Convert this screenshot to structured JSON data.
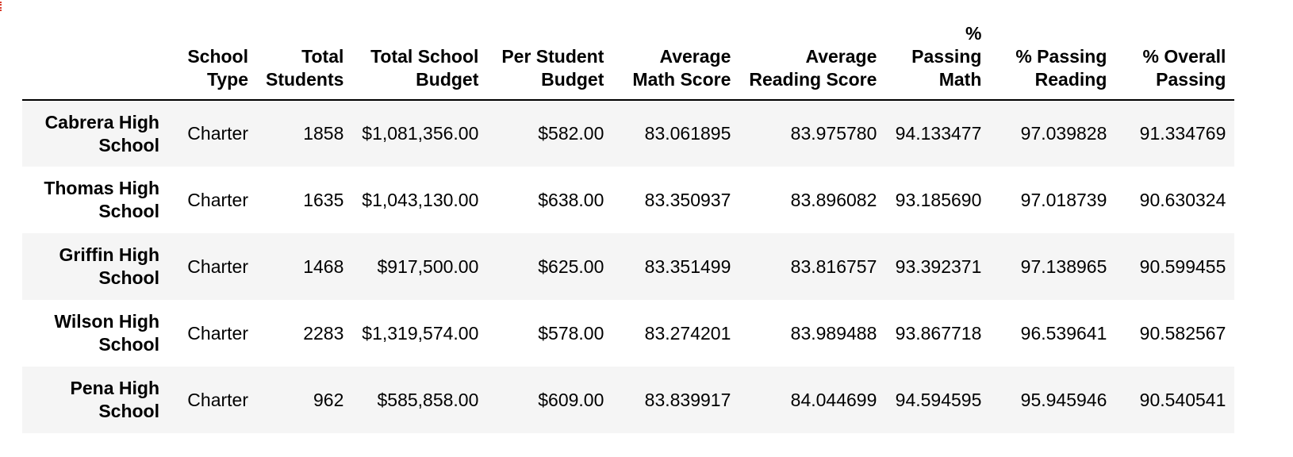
{
  "table": {
    "columns": [
      {
        "key": "school_type",
        "label": "School Type"
      },
      {
        "key": "total_students",
        "label": "Total Students"
      },
      {
        "key": "total_budget",
        "label": "Total School Budget"
      },
      {
        "key": "per_student_budget",
        "label": "Per Student Budget"
      },
      {
        "key": "avg_math",
        "label": "Average Math Score"
      },
      {
        "key": "avg_reading",
        "label": "Average Reading Score"
      },
      {
        "key": "pct_math",
        "label": "% Passing Math"
      },
      {
        "key": "pct_reading",
        "label": "% Passing Reading"
      },
      {
        "key": "pct_overall",
        "label": "% Overall Passing"
      }
    ],
    "rows": [
      {
        "index": "Cabrera High School",
        "cells": [
          "Charter",
          "1858",
          "$1,081,356.00",
          "$582.00",
          "83.061895",
          "83.975780",
          "94.133477",
          "97.039828",
          "91.334769"
        ]
      },
      {
        "index": "Thomas High School",
        "cells": [
          "Charter",
          "1635",
          "$1,043,130.00",
          "$638.00",
          "83.350937",
          "83.896082",
          "93.185690",
          "97.018739",
          "90.630324"
        ]
      },
      {
        "index": "Griffin High School",
        "cells": [
          "Charter",
          "1468",
          "$917,500.00",
          "$625.00",
          "83.351499",
          "83.816757",
          "93.392371",
          "97.138965",
          "90.599455"
        ]
      },
      {
        "index": "Wilson High School",
        "cells": [
          "Charter",
          "2283",
          "$1,319,574.00",
          "$578.00",
          "83.274201",
          "83.989488",
          "93.867718",
          "96.539641",
          "90.582567"
        ]
      },
      {
        "index": "Pena High School",
        "cells": [
          "Charter",
          "962",
          "$585,858.00",
          "$609.00",
          "83.839917",
          "84.044699",
          "94.594595",
          "95.945946",
          "90.540541"
        ]
      }
    ]
  },
  "colors": {
    "row_stripe": "#f5f5f5",
    "header_rule": "#000000",
    "corner_mark": "#d83a2a"
  }
}
